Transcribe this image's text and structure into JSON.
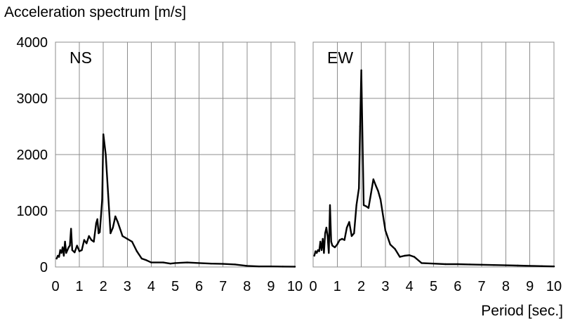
{
  "figure": {
    "ylabel": "Acceleration spectrum [m/s]",
    "xlabel": "Period [sec.]"
  },
  "chart_data": [
    {
      "type": "line",
      "title": "NS",
      "xlim": [
        0,
        10
      ],
      "ylim": [
        0,
        4000
      ],
      "x_ticks": [
        0,
        1,
        2,
        3,
        4,
        5,
        6,
        7,
        8,
        9,
        10
      ],
      "y_ticks": [
        0,
        1000,
        2000,
        3000,
        4000
      ],
      "grid": true,
      "series": [
        {
          "x": [
            0.05,
            0.1,
            0.15,
            0.2,
            0.25,
            0.3,
            0.35,
            0.4,
            0.45,
            0.5,
            0.55,
            0.6,
            0.65,
            0.7,
            0.75,
            0.8,
            0.9,
            1.0,
            1.1,
            1.2,
            1.3,
            1.4,
            1.5,
            1.6,
            1.7,
            1.75,
            1.8,
            1.85,
            1.9,
            1.95,
            2.0,
            2.1,
            2.2,
            2.3,
            2.4,
            2.5,
            2.6,
            2.8,
            3.0,
            3.2,
            3.4,
            3.6,
            3.8,
            4.0,
            4.5,
            4.8,
            5.0,
            5.5,
            6.0,
            6.5,
            7.0,
            7.5,
            8.0,
            8.5,
            9.0,
            9.5,
            10.0
          ],
          "values": [
            150,
            200,
            180,
            300,
            250,
            350,
            200,
            450,
            250,
            300,
            350,
            380,
            680,
            300,
            280,
            260,
            380,
            280,
            300,
            480,
            420,
            550,
            480,
            450,
            780,
            850,
            600,
            620,
            900,
            1200,
            2360,
            2000,
            1300,
            600,
            700,
            900,
            800,
            550,
            500,
            450,
            280,
            150,
            120,
            80,
            80,
            60,
            70,
            80,
            70,
            60,
            55,
            45,
            20,
            10,
            10,
            8,
            5
          ]
        }
      ]
    },
    {
      "type": "line",
      "title": "EW",
      "xlim": [
        0,
        10
      ],
      "ylim": [
        0,
        4000
      ],
      "x_ticks": [
        0,
        1,
        2,
        3,
        4,
        5,
        6,
        7,
        8,
        9,
        10
      ],
      "y_ticks": [
        0,
        1000,
        2000,
        3000,
        4000
      ],
      "grid": true,
      "series": [
        {
          "x": [
            0.05,
            0.1,
            0.15,
            0.2,
            0.25,
            0.3,
            0.35,
            0.4,
            0.45,
            0.5,
            0.55,
            0.6,
            0.65,
            0.7,
            0.75,
            0.8,
            0.9,
            1.0,
            1.1,
            1.2,
            1.3,
            1.4,
            1.5,
            1.6,
            1.7,
            1.8,
            1.9,
            1.95,
            2.0,
            2.1,
            2.2,
            2.3,
            2.4,
            2.5,
            2.6,
            2.7,
            2.8,
            3.0,
            3.2,
            3.4,
            3.6,
            3.8,
            4.0,
            4.2,
            4.5,
            5.0,
            5.5,
            6.0,
            6.5,
            7.0,
            7.5,
            8.0,
            8.5,
            9.0,
            9.5,
            10.0
          ],
          "values": [
            200,
            280,
            250,
            300,
            280,
            450,
            300,
            500,
            250,
            600,
            700,
            550,
            250,
            1100,
            450,
            380,
            350,
            400,
            480,
            500,
            480,
            700,
            800,
            550,
            600,
            1100,
            1400,
            2500,
            3500,
            1100,
            1080,
            1050,
            1300,
            1560,
            1450,
            1350,
            1200,
            650,
            400,
            320,
            180,
            200,
            210,
            180,
            70,
            60,
            50,
            50,
            45,
            40,
            35,
            30,
            25,
            20,
            15,
            10
          ]
        }
      ]
    }
  ]
}
